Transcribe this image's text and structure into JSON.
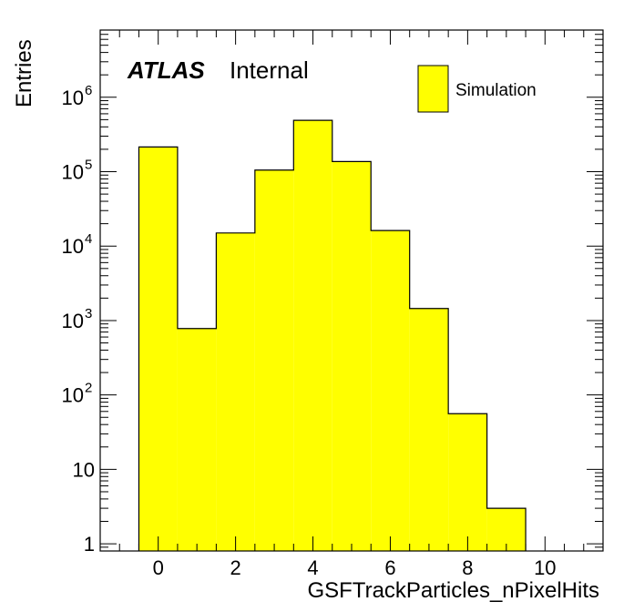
{
  "labels": {
    "atlas": "ATLAS",
    "status": "Internal"
  },
  "chart_data": {
    "type": "bar",
    "histogram": true,
    "xlabel": "GSFTrackParticles_nPixelHits",
    "ylabel": "Entries",
    "xlim": [
      -1.5,
      11.5
    ],
    "ylim": [
      0.8,
      8000000
    ],
    "yscale": "log",
    "bin_width": 1,
    "categories": [
      "0",
      "1",
      "2",
      "3",
      "4",
      "5",
      "6",
      "7",
      "8",
      "9"
    ],
    "values": [
      215000,
      780,
      15000,
      105000,
      490000,
      137000,
      16200,
      1450,
      56,
      3
    ],
    "x_ticks": [
      0,
      2,
      4,
      6,
      8,
      10
    ],
    "x_tick_labels": [
      "0",
      "2",
      "4",
      "6",
      "8",
      "10"
    ],
    "y_ticks": [
      1,
      10,
      100,
      1000,
      10000,
      100000,
      1000000
    ],
    "y_tick_labels": [
      {
        "base": "1",
        "exp": ""
      },
      {
        "base": "10",
        "exp": ""
      },
      {
        "base": "10",
        "exp": "2"
      },
      {
        "base": "10",
        "exp": "3"
      },
      {
        "base": "10",
        "exp": "4"
      },
      {
        "base": "10",
        "exp": "5"
      },
      {
        "base": "10",
        "exp": "6"
      }
    ],
    "series": [
      {
        "name": "Simulation",
        "color": "#ffff00",
        "values": [
          215000,
          780,
          15000,
          105000,
          490000,
          137000,
          16200,
          1450,
          56,
          3
        ]
      }
    ],
    "legend_position": "top-right",
    "grid": false
  }
}
